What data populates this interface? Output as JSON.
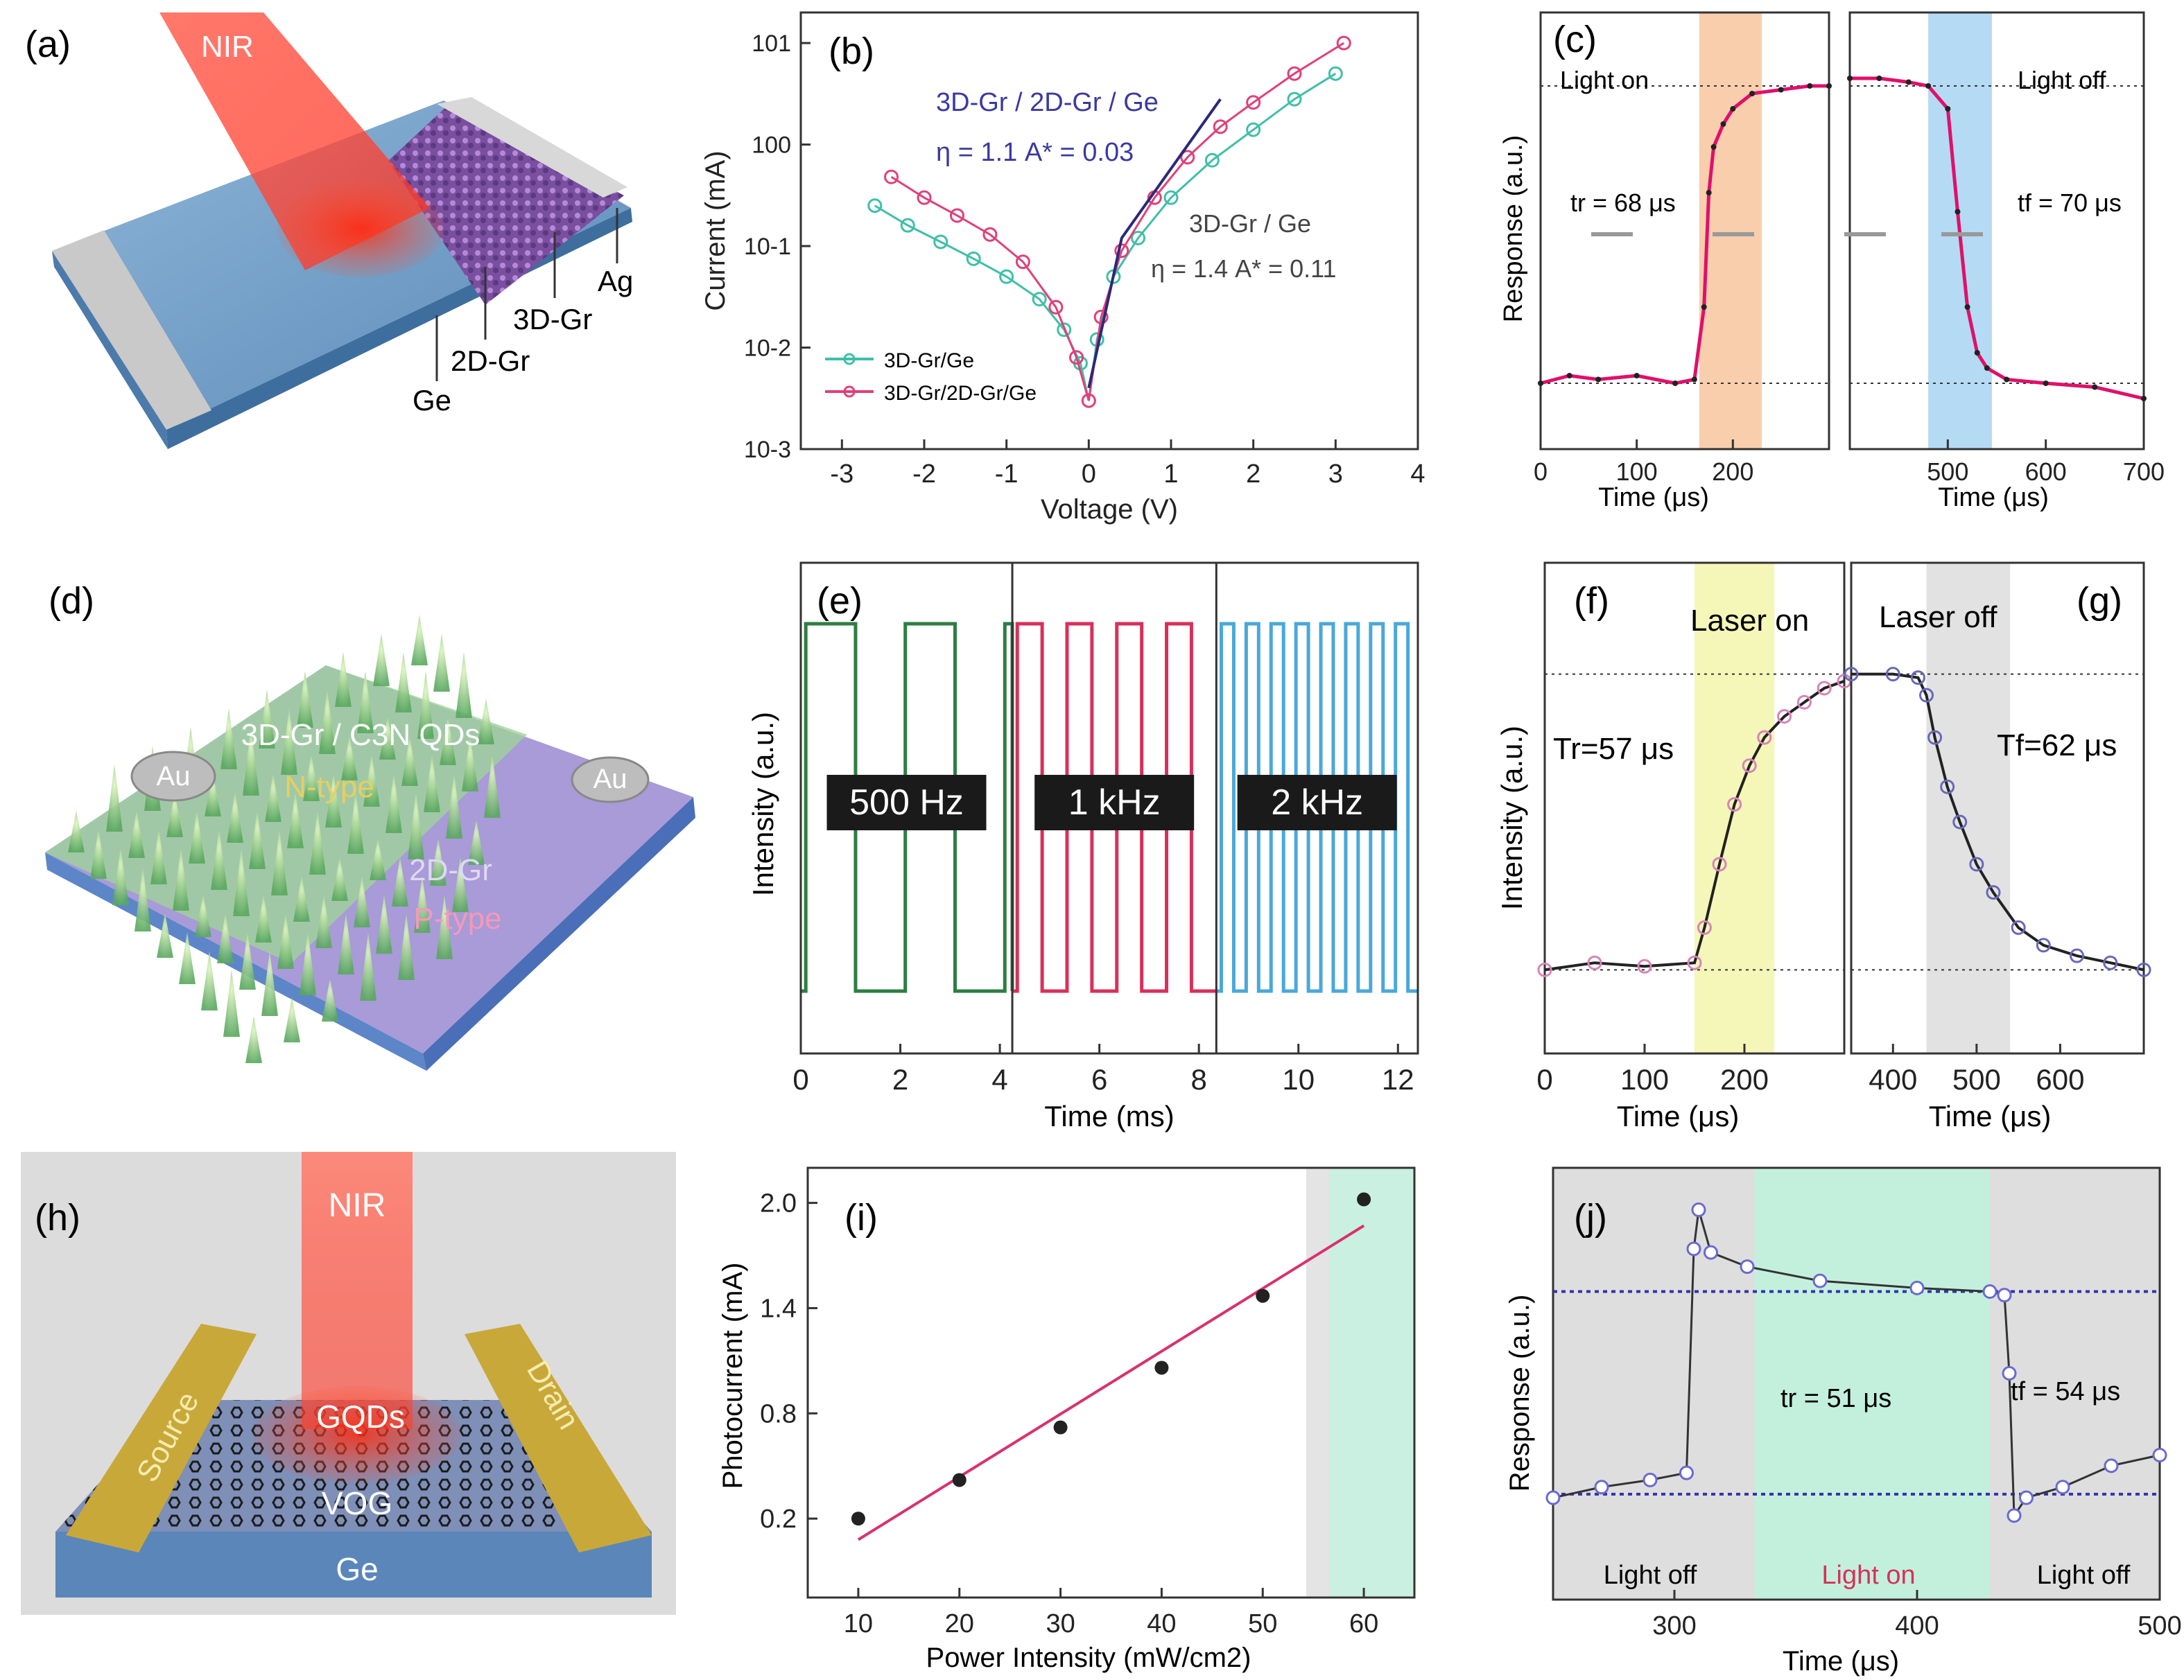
{
  "panels": {
    "a": {
      "letter": "(a)",
      "beam": "NIR",
      "layers": [
        "Ag",
        "3D-Gr",
        "2D-Gr",
        "Ge"
      ]
    },
    "b": {
      "letter": "(b)",
      "label_top": "3D-Gr / 2D-Gr / Ge",
      "eta_top": "η = 1.1   A* = 0.03",
      "label_mid": "3D-Gr / Ge",
      "eta_mid": "η = 1.4  A* = 0.11",
      "legend": [
        "3D-Gr/Ge",
        "3D-Gr/2D-Gr/Ge"
      ]
    },
    "c": {
      "letter": "(c)",
      "light_on": "Light on",
      "light_off": "Light off",
      "tr": "tr = 68 μs",
      "tf": "tf = 70 μs",
      "ylabel": "Response (a.u.)",
      "xlabel": "Time (μs)"
    },
    "d": {
      "letter": "(d)",
      "label1": "3D-Gr / C3N QDs",
      "label2": "N-type",
      "label3": "2D-Gr",
      "label4": "P-type",
      "electrode": "Au"
    },
    "e": {
      "letter": "(e)",
      "freqs": [
        "500 Hz",
        "1 kHz",
        "2 kHz"
      ],
      "ylabel": "Intensity (a.u.)",
      "xlabel": "Time (ms)"
    },
    "f": {
      "letter": "(f)",
      "title": "Laser on",
      "tr": "Tr=57 μs",
      "ylabel": "Intensity (a.u.)",
      "xlabel": "Time (μs)"
    },
    "g": {
      "letter": "(g)",
      "title": "Laser off",
      "tf": "Tf=62 μs",
      "xlabel": "Time (μs)"
    },
    "h": {
      "letter": "(h)",
      "beam": "NIR",
      "source": "Source",
      "drain": "Drain",
      "gqds": "GQDs",
      "vog": "VOG",
      "ge": "Ge"
    },
    "i": {
      "letter": "(i)",
      "xlabel": "Power Intensity (mW/cm2)",
      "ylabel": "Photocurrent (mA)"
    },
    "j": {
      "letter": "(j)",
      "off1": "Light off",
      "on": "Light on",
      "off2": "Light off",
      "tr": "tr = 51 μs",
      "tf": "tf = 54 μs",
      "ylabel": "Response (a.u.)",
      "xlabel": "Time (μs)"
    }
  },
  "chart_data": [
    {
      "panel": "b",
      "type": "scatter",
      "xlabel": "Voltage (V)",
      "ylabel": "Current (mA)",
      "yscale": "log",
      "xlim": [
        -3.5,
        4
      ],
      "ylim": [
        0.001,
        20
      ],
      "xticks": [
        -3,
        -2,
        -1,
        0,
        1,
        2,
        3,
        4
      ],
      "yticks": [
        "10-3",
        "10-2",
        "10-1",
        "100",
        "101"
      ],
      "series": [
        {
          "name": "3D-Gr/Ge",
          "color": "#3fbfa8",
          "x": [
            -2.6,
            -2.2,
            -1.8,
            -1.4,
            -1.0,
            -0.6,
            -0.3,
            -0.1,
            0.0,
            0.1,
            0.3,
            0.6,
            1.0,
            1.5,
            2.0,
            2.5,
            3.0
          ],
          "y": [
            0.25,
            0.16,
            0.11,
            0.075,
            0.05,
            0.03,
            0.015,
            0.007,
            0.003,
            0.012,
            0.05,
            0.12,
            0.3,
            0.7,
            1.4,
            2.8,
            5.0
          ]
        },
        {
          "name": "3D-Gr/2D-Gr/Ge",
          "color": "#e0407a",
          "x": [
            -2.4,
            -2.0,
            -1.6,
            -1.2,
            -0.8,
            -0.4,
            -0.15,
            0.0,
            0.15,
            0.4,
            0.8,
            1.2,
            1.6,
            2.0,
            2.5,
            3.1
          ],
          "y": [
            0.48,
            0.3,
            0.2,
            0.13,
            0.07,
            0.025,
            0.008,
            0.003,
            0.02,
            0.09,
            0.3,
            0.75,
            1.5,
            2.6,
            5.0,
            10.0
          ]
        }
      ]
    },
    {
      "panel": "c",
      "type": "line",
      "xlabel": "Time (μs)",
      "ylabel": "Response (a.u.)",
      "subplots": [
        {
          "xlim": [
            0,
            300
          ],
          "xticks": [
            0,
            100,
            200
          ],
          "ylim": [
            0,
            1
          ],
          "shaded": [
            165,
            230
          ],
          "x": [
            0,
            30,
            60,
            100,
            140,
            160,
            170,
            175,
            180,
            190,
            200,
            220,
            250,
            280,
            300
          ],
          "y": [
            0.1,
            0.12,
            0.11,
            0.12,
            0.1,
            0.11,
            0.3,
            0.6,
            0.72,
            0.78,
            0.82,
            0.86,
            0.87,
            0.88,
            0.88
          ]
        },
        {
          "xlim": [
            400,
            700
          ],
          "xticks": [
            500,
            600,
            700
          ],
          "ylim": [
            0,
            1
          ],
          "shaded": [
            480,
            545
          ],
          "x": [
            400,
            430,
            460,
            480,
            500,
            510,
            520,
            530,
            540,
            560,
            600,
            650,
            700
          ],
          "y": [
            0.9,
            0.9,
            0.89,
            0.88,
            0.82,
            0.55,
            0.3,
            0.18,
            0.14,
            0.11,
            0.1,
            0.09,
            0.06
          ]
        }
      ]
    },
    {
      "panel": "e",
      "type": "line",
      "xlabel": "Time (ms)",
      "ylabel": "Intensity (a.u.)",
      "xlim": [
        0,
        12.4
      ],
      "xticks": [
        0,
        2,
        4,
        6,
        8,
        10,
        12
      ],
      "segments": [
        {
          "label": "500 Hz",
          "range": [
            0,
            4.25
          ],
          "period": 2.0,
          "color": "#2e7d43"
        },
        {
          "label": "1 kHz",
          "range": [
            4.25,
            8.35
          ],
          "period": 1.0,
          "color": "#d8305a"
        },
        {
          "label": "2 kHz",
          "range": [
            8.35,
            12.4
          ],
          "period": 0.5,
          "color": "#4aa8d8"
        }
      ]
    },
    {
      "panel": "f-g",
      "type": "line",
      "xlabel": "Time (μs)",
      "ylabel": "Intensity (a.u.)",
      "subplots": [
        {
          "xlim": [
            0,
            300
          ],
          "xticks": [
            0,
            100,
            200
          ],
          "ylim": [
            0,
            1
          ],
          "shaded": [
            150,
            230
          ],
          "x": [
            0,
            50,
            100,
            150,
            160,
            175,
            190,
            205,
            220,
            240,
            260,
            280,
            300
          ],
          "y": [
            0.08,
            0.1,
            0.09,
            0.1,
            0.2,
            0.38,
            0.55,
            0.66,
            0.74,
            0.8,
            0.84,
            0.88,
            0.9
          ]
        },
        {
          "xlim": [
            350,
            700
          ],
          "xticks": [
            400,
            500,
            600
          ],
          "ylim": [
            0,
            1
          ],
          "shaded": [
            440,
            540
          ],
          "x": [
            350,
            400,
            430,
            440,
            450,
            465,
            480,
            500,
            520,
            550,
            580,
            620,
            660,
            700
          ],
          "y": [
            0.92,
            0.92,
            0.91,
            0.86,
            0.74,
            0.6,
            0.5,
            0.38,
            0.3,
            0.2,
            0.15,
            0.12,
            0.1,
            0.08
          ]
        }
      ]
    },
    {
      "panel": "i",
      "type": "scatter",
      "xlabel": "Power Intensity (mW/cm2)",
      "ylabel": "Photocurrent (mA)",
      "xlim": [
        5,
        65
      ],
      "ylim": [
        -0.25,
        2.2
      ],
      "xticks": [
        10,
        20,
        30,
        40,
        50,
        60
      ],
      "yticks": [
        0.2,
        0.8,
        1.4,
        2.0
      ],
      "x": [
        10,
        20,
        30,
        40,
        50,
        60
      ],
      "y": [
        0.2,
        0.42,
        0.72,
        1.06,
        1.47,
        2.02
      ],
      "fit": {
        "x": [
          10,
          60
        ],
        "y": [
          0.08,
          1.87
        ],
        "color": "#d8326e"
      }
    },
    {
      "panel": "j",
      "type": "line",
      "xlabel": "Time (μs)",
      "ylabel": "Response (a.u.)",
      "xlim": [
        250,
        500
      ],
      "xticks": [
        300,
        400,
        500
      ],
      "ylim": [
        0,
        1
      ],
      "shaded_on": [
        333,
        430
      ],
      "x": [
        250,
        270,
        290,
        305,
        308,
        310,
        315,
        330,
        360,
        400,
        430,
        436,
        438,
        440,
        445,
        460,
        480,
        500
      ],
      "y": [
        0.15,
        0.18,
        0.2,
        0.22,
        0.85,
        0.96,
        0.84,
        0.8,
        0.76,
        0.74,
        0.73,
        0.72,
        0.5,
        0.1,
        0.15,
        0.18,
        0.24,
        0.27
      ]
    }
  ]
}
